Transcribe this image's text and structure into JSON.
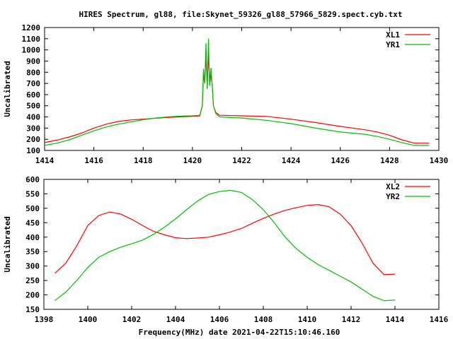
{
  "chart_data": [
    {
      "type": "line",
      "title": "HIRES Spectrum, gl88, file:Skynet_59326_gl88_57966_5829.spect.cyb.txt",
      "xlabel": "",
      "ylabel": "Uncalibrated",
      "xlim": [
        1414,
        1430
      ],
      "ylim": [
        100,
        1200
      ],
      "xticks": [
        "1414",
        "1416",
        "1418",
        "1420",
        "1422",
        "1424",
        "1426",
        "1428",
        "1430"
      ],
      "yticks": [
        "100",
        "200",
        "300",
        "400",
        "500",
        "600",
        "700",
        "800",
        "900",
        "1000",
        "1100",
        "1200"
      ],
      "legend_position": "top-right",
      "series": [
        {
          "name": "XL1",
          "color": "#ff0000",
          "x": [
            1414,
            1414.5,
            1415,
            1415.5,
            1416,
            1416.5,
            1417,
            1417.5,
            1418,
            1418.5,
            1419,
            1419.5,
            1420,
            1420.3,
            1420.4,
            1420.45,
            1420.5,
            1420.55,
            1420.6,
            1420.65,
            1420.7,
            1420.75,
            1420.8,
            1420.85,
            1420.95,
            1421.1,
            1422,
            1423,
            1424,
            1425,
            1426,
            1427,
            1427.5,
            1428,
            1428.5,
            1429,
            1429.6
          ],
          "y": [
            170,
            192,
            220,
            255,
            300,
            335,
            360,
            373,
            380,
            388,
            395,
            400,
            405,
            410,
            500,
            780,
            700,
            960,
            660,
            990,
            680,
            780,
            700,
            500,
            440,
            415,
            410,
            405,
            380,
            350,
            315,
            285,
            265,
            235,
            195,
            165,
            165
          ]
        },
        {
          "name": "YR1",
          "color": "#00c000",
          "x": [
            1414,
            1414.5,
            1415,
            1415.5,
            1416,
            1416.5,
            1417,
            1417.5,
            1418,
            1418.5,
            1419,
            1419.5,
            1420,
            1420.3,
            1420.4,
            1420.45,
            1420.5,
            1420.55,
            1420.6,
            1420.65,
            1420.7,
            1420.75,
            1420.8,
            1420.85,
            1420.95,
            1421.1,
            1422,
            1423,
            1424,
            1425,
            1426,
            1427,
            1427.5,
            1428,
            1428.5,
            1429,
            1429.6
          ],
          "y": [
            145,
            165,
            195,
            235,
            275,
            310,
            335,
            355,
            375,
            390,
            400,
            408,
            410,
            415,
            500,
            830,
            700,
            1060,
            650,
            1100,
            680,
            840,
            700,
            500,
            430,
            400,
            390,
            370,
            340,
            300,
            265,
            245,
            225,
            200,
            170,
            145,
            145
          ]
        }
      ]
    },
    {
      "type": "line",
      "title": "",
      "xlabel": "Frequency(MHz) date 2021-04-22T15:10:46.160",
      "ylabel": "Uncalibrated",
      "xlim": [
        1398,
        1416
      ],
      "ylim": [
        150,
        600
      ],
      "xticks": [
        "1398",
        "1400",
        "1402",
        "1404",
        "1406",
        "1408",
        "1410",
        "1412",
        "1414",
        "1416"
      ],
      "yticks": [
        "150",
        "200",
        "250",
        "300",
        "350",
        "400",
        "450",
        "500",
        "550",
        "600"
      ],
      "legend_position": "top-right",
      "series": [
        {
          "name": "XL2",
          "color": "#ff0000",
          "x": [
            1398.5,
            1399,
            1399.5,
            1400,
            1400.5,
            1401,
            1401.5,
            1402,
            1402.5,
            1403,
            1403.5,
            1404,
            1404.5,
            1405,
            1405.5,
            1406,
            1406.5,
            1407,
            1407.5,
            1408,
            1408.5,
            1409,
            1409.5,
            1410,
            1410.5,
            1411,
            1411.5,
            1412,
            1412.5,
            1413,
            1413.5,
            1414
          ],
          "y": [
            275,
            310,
            370,
            440,
            475,
            487,
            480,
            462,
            440,
            420,
            408,
            398,
            395,
            397,
            400,
            408,
            418,
            430,
            448,
            465,
            480,
            493,
            502,
            510,
            513,
            505,
            480,
            440,
            380,
            310,
            270,
            272
          ]
        },
        {
          "name": "YR2",
          "color": "#00c000",
          "x": [
            1398.5,
            1399,
            1399.5,
            1400,
            1400.5,
            1401,
            1401.5,
            1402,
            1402.5,
            1403,
            1403.5,
            1404,
            1404.5,
            1405,
            1405.5,
            1406,
            1406.5,
            1407,
            1407.5,
            1408,
            1408.5,
            1409,
            1409.5,
            1410,
            1410.5,
            1411,
            1411.5,
            1412,
            1412.5,
            1413,
            1413.5,
            1414
          ],
          "y": [
            180,
            210,
            250,
            295,
            330,
            350,
            365,
            377,
            390,
            410,
            435,
            463,
            495,
            525,
            548,
            558,
            562,
            555,
            530,
            495,
            450,
            400,
            360,
            330,
            305,
            285,
            265,
            245,
            220,
            195,
            180,
            182
          ]
        }
      ]
    }
  ]
}
